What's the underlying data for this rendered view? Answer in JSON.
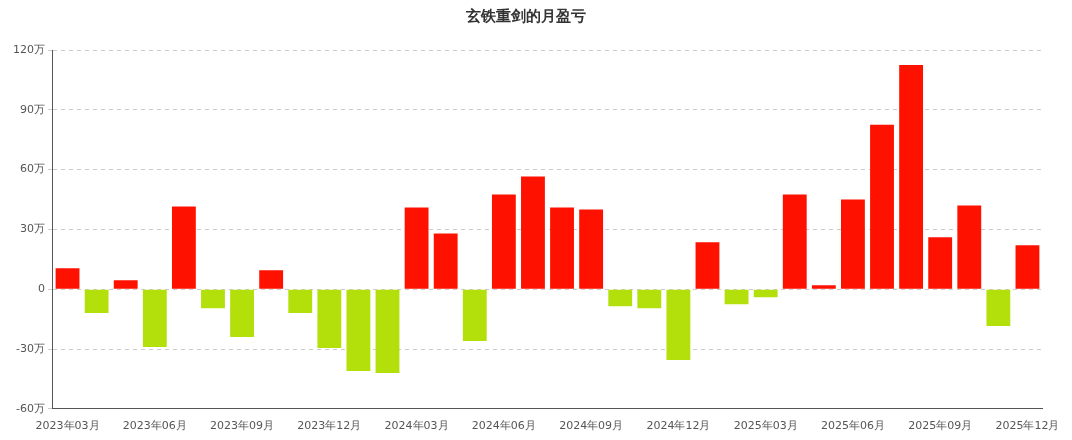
{
  "chart_data": {
    "type": "bar",
    "title": "玄铁重剑的月盈亏",
    "categories": [
      "2023年03月",
      null,
      null,
      "2023年06月",
      null,
      null,
      "2023年09月",
      null,
      null,
      "2023年12月",
      null,
      null,
      "2024年03月",
      null,
      null,
      "2024年06月",
      null,
      null,
      "2024年09月",
      null,
      null,
      "2024年12月",
      null,
      null,
      "2025年03月",
      null,
      null,
      "2025年06月",
      null,
      null,
      "2025年09月",
      null,
      null,
      "2025年12月"
    ],
    "values": [
      10.5,
      -12,
      4.5,
      -29,
      41.5,
      -9.5,
      -24,
      9.5,
      -12,
      -29.5,
      -41,
      -42,
      41,
      28,
      -26,
      47.5,
      56.5,
      41,
      40,
      -8.5,
      -9.5,
      -35.5,
      23.5,
      -7.5,
      -4,
      47.5,
      2,
      45,
      82.5,
      112.5,
      26,
      42,
      -18.5,
      22
    ],
    "colors": [
      "#ff1100",
      "#b3e00b",
      "#ff1100",
      "#b3e00b",
      "#ff1100",
      "#b3e00b",
      "#b3e00b",
      "#ff1100",
      "#b3e00b",
      "#b3e00b",
      "#b3e00b",
      "#b3e00b",
      "#ff1100",
      "#ff1100",
      "#b3e00b",
      "#ff1100",
      "#ff1100",
      "#ff1100",
      "#ff1100",
      "#b3e00b",
      "#b3e00b",
      "#b3e00b",
      "#ff1100",
      "#b3e00b",
      "#b3e00b",
      "#ff1100",
      "#ff1100",
      "#ff1100",
      "#ff1100",
      "#ff1100",
      "#ff1100",
      "#ff1100",
      "#b3e00b",
      "#ff1100"
    ],
    "ylim": [
      -60,
      120
    ],
    "yticks": [
      {
        "value": -60,
        "label": "-60万"
      },
      {
        "value": -30,
        "label": "-30万"
      },
      0,
      {
        "value": 30,
        "label": "30万"
      },
      {
        "value": 60,
        "label": "60万"
      },
      {
        "value": 90,
        "label": "90万"
      },
      {
        "value": 120,
        "label": "120万"
      }
    ],
    "grid": "y",
    "legend": false
  }
}
